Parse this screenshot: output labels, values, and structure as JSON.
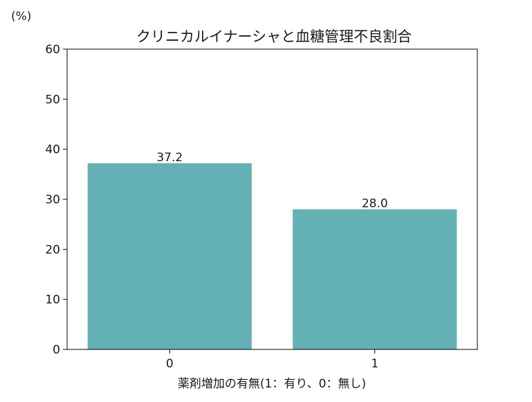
{
  "chart_data": {
    "type": "bar",
    "title": "クリニカルイナーシャと血糖管理不良割合",
    "unit_label": "(%)",
    "xlabel": "薬剤増加の有無(1：有り、0：無し)",
    "ylabel": "",
    "categories": [
      "0",
      "1"
    ],
    "values": [
      37.2,
      28.0
    ],
    "value_labels": [
      "37.2",
      "28.0"
    ],
    "ylim": [
      0,
      60
    ],
    "yticks": [
      0,
      10,
      20,
      30,
      40,
      50,
      60
    ],
    "bar_color": "#63b1b5",
    "grid": false,
    "legend": "none"
  }
}
